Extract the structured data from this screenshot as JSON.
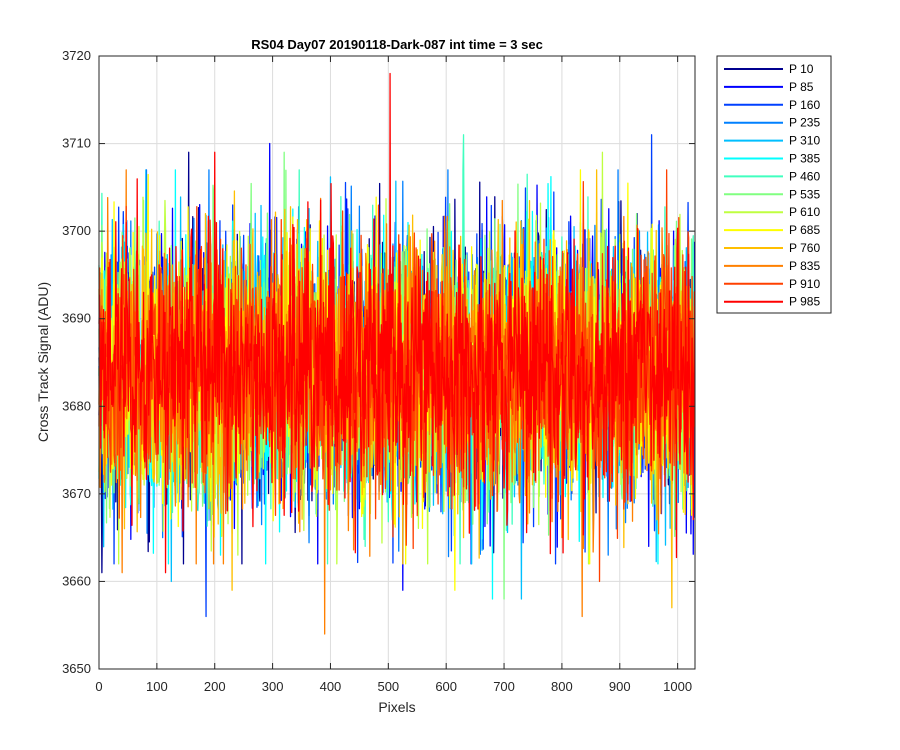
{
  "chart_data": {
    "type": "line",
    "title": "RS04 Day07 20190118-Dark-087 int time = 3 sec",
    "xlabel": "Pixels",
    "ylabel": "Cross Track Signal (ADU)",
    "xlim": [
      0,
      1030
    ],
    "ylim": [
      3650,
      3720
    ],
    "xticks": [
      0,
      100,
      200,
      300,
      400,
      500,
      600,
      700,
      800,
      900,
      1000
    ],
    "yticks": [
      3650,
      3660,
      3670,
      3680,
      3690,
      3700,
      3710,
      3720
    ],
    "grid": true,
    "legend_position": "outside-top-right",
    "n_points_per_series": 1030,
    "noise_center": 3684,
    "series": [
      {
        "name": "P 10",
        "color": "#00008F",
        "extremes": [
          [
            155,
            3709
          ],
          [
            5,
            3661
          ]
        ]
      },
      {
        "name": "P 85",
        "color": "#0000FF",
        "extremes": [
          [
            295,
            3710
          ],
          [
            525,
            3659
          ],
          [
            950,
            3664
          ]
        ]
      },
      {
        "name": "P 160",
        "color": "#0040FF",
        "extremes": [
          [
            185,
            3656
          ],
          [
            955,
            3711
          ]
        ]
      },
      {
        "name": "P 235",
        "color": "#0080FF",
        "extremes": [
          [
            110,
            3665
          ],
          [
            880,
            3663
          ]
        ]
      },
      {
        "name": "P 310",
        "color": "#00BFFF",
        "extremes": [
          [
            125,
            3660
          ],
          [
            730,
            3658
          ]
        ]
      },
      {
        "name": "P 385",
        "color": "#00FFFF",
        "extremes": [
          [
            210,
            3663
          ],
          [
            680,
            3658
          ]
        ]
      },
      {
        "name": "P 460",
        "color": "#40FFBF",
        "extremes": [
          [
            630,
            3711
          ],
          [
            460,
            3664
          ]
        ]
      },
      {
        "name": "P 535",
        "color": "#80FF80",
        "extremes": [
          [
            700,
            3658
          ],
          [
            320,
            3709
          ]
        ]
      },
      {
        "name": "P 610",
        "color": "#BFFF40",
        "extremes": [
          [
            870,
            3709
          ],
          [
            240,
            3663
          ]
        ]
      },
      {
        "name": "P 685",
        "color": "#FFFF00",
        "extremes": [
          [
            615,
            3659
          ],
          [
            530,
            3662
          ]
        ]
      },
      {
        "name": "P 760",
        "color": "#FFBF00",
        "extremes": [
          [
            230,
            3659
          ],
          [
            990,
            3657
          ]
        ]
      },
      {
        "name": "P 835",
        "color": "#FF8000",
        "extremes": [
          [
            390,
            3654
          ],
          [
            835,
            3656
          ],
          [
            40,
            3661
          ]
        ]
      },
      {
        "name": "P 910",
        "color": "#FF4000",
        "extremes": [
          [
            865,
            3660
          ]
        ]
      },
      {
        "name": "P 985",
        "color": "#FF0000",
        "extremes": [
          [
            503,
            3718
          ],
          [
            200,
            3709
          ],
          [
            115,
            3661
          ]
        ]
      }
    ]
  }
}
